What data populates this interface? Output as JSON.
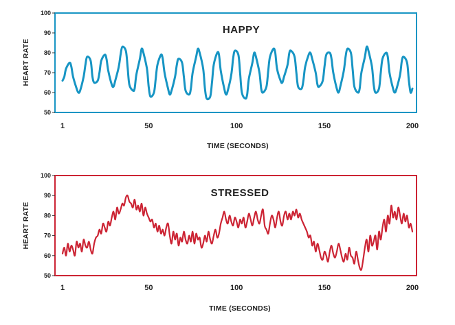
{
  "chart_data": [
    {
      "type": "line",
      "title": "HAPPY",
      "xlabel": "TIME (SECONDS)",
      "ylabel": "HEART RATE",
      "xlim": [
        1,
        200
      ],
      "ylim": [
        50,
        100
      ],
      "xticks": [
        "1",
        "50",
        "100",
        "150",
        "200"
      ],
      "yticks": [
        "50",
        "60",
        "70",
        "80",
        "90",
        "100"
      ],
      "grid": false,
      "colors": {
        "line": "#1795c4",
        "frame": "#1795c4"
      },
      "x": [
        1,
        2,
        3,
        5,
        6,
        7,
        9,
        10,
        11,
        13,
        14,
        15,
        17,
        18,
        19,
        21,
        22,
        23,
        25,
        26,
        27,
        29,
        30,
        31,
        33,
        34,
        35,
        37,
        38,
        39,
        41,
        42,
        43,
        45,
        46,
        47,
        49,
        50,
        51,
        53,
        54,
        55,
        57,
        58,
        59,
        61,
        62,
        63,
        65,
        66,
        67,
        69,
        70,
        71,
        73,
        74,
        75,
        77,
        78,
        79,
        81,
        82,
        83,
        85,
        86,
        87,
        89,
        90,
        91,
        93,
        94,
        95,
        97,
        98,
        99,
        101,
        102,
        103,
        105,
        106,
        107,
        109,
        110,
        111,
        113,
        114,
        115,
        117,
        118,
        119,
        121,
        122,
        123,
        125,
        126,
        127,
        129,
        130,
        131,
        133,
        134,
        135,
        137,
        138,
        139,
        141,
        142,
        143,
        145,
        146,
        147,
        149,
        150,
        151,
        153,
        154,
        155,
        157,
        158,
        159,
        161,
        162,
        163,
        165,
        166,
        167,
        169,
        170,
        171,
        173,
        174,
        175,
        177,
        178,
        179,
        181,
        182,
        183,
        185,
        186,
        187,
        189,
        190,
        191,
        193,
        194,
        195,
        197,
        198,
        199,
        200
      ],
      "y": [
        66,
        68,
        72,
        75,
        73,
        68,
        62,
        60,
        61,
        68,
        74,
        78,
        76,
        68,
        65,
        66,
        70,
        76,
        79,
        77,
        71,
        64,
        63,
        66,
        73,
        79,
        83,
        81,
        73,
        64,
        61,
        62,
        69,
        77,
        82,
        80,
        72,
        63,
        58,
        60,
        67,
        74,
        79,
        77,
        70,
        62,
        59,
        61,
        68,
        74,
        77,
        75,
        68,
        61,
        59,
        62,
        70,
        78,
        82,
        80,
        72,
        62,
        57,
        58,
        65,
        74,
        80,
        79,
        71,
        62,
        59,
        61,
        69,
        77,
        81,
        79,
        70,
        60,
        57,
        59,
        67,
        75,
        80,
        78,
        70,
        62,
        60,
        63,
        71,
        78,
        82,
        80,
        72,
        66,
        65,
        68,
        74,
        80,
        81,
        78,
        70,
        63,
        62,
        66,
        73,
        79,
        80,
        77,
        70,
        64,
        63,
        66,
        73,
        79,
        80,
        77,
        70,
        62,
        60,
        63,
        71,
        78,
        82,
        80,
        72,
        63,
        60,
        62,
        70,
        78,
        83,
        81,
        73,
        64,
        60,
        62,
        70,
        77,
        80,
        78,
        70,
        62,
        60,
        62,
        69,
        76,
        78,
        75,
        66,
        60,
        62
      ]
    },
    {
      "type": "line",
      "title": "STRESSED",
      "xlabel": "TIME (SECONDS)",
      "ylabel": "HEART RATE",
      "xlim": [
        1,
        200
      ],
      "ylim": [
        50,
        100
      ],
      "xticks": [
        "1",
        "50",
        "100",
        "150",
        "200"
      ],
      "yticks": [
        "50",
        "60",
        "70",
        "80",
        "90",
        "100"
      ],
      "grid": false,
      "colors": {
        "line": "#cc2434",
        "frame": "#cc2434"
      },
      "x": [
        1,
        2,
        3,
        4,
        5,
        6,
        7,
        8,
        9,
        10,
        11,
        12,
        13,
        14,
        15,
        16,
        17,
        18,
        19,
        20,
        21,
        22,
        23,
        24,
        25,
        26,
        27,
        28,
        29,
        30,
        31,
        32,
        33,
        34,
        35,
        36,
        37,
        38,
        39,
        40,
        41,
        42,
        43,
        44,
        45,
        46,
        47,
        48,
        49,
        50,
        51,
        52,
        53,
        54,
        55,
        56,
        57,
        58,
        59,
        60,
        61,
        62,
        63,
        64,
        65,
        66,
        67,
        68,
        69,
        70,
        71,
        72,
        73,
        74,
        75,
        76,
        77,
        78,
        79,
        80,
        81,
        82,
        83,
        84,
        85,
        86,
        87,
        88,
        89,
        90,
        91,
        92,
        93,
        94,
        95,
        96,
        97,
        98,
        99,
        100,
        101,
        102,
        103,
        104,
        105,
        106,
        107,
        108,
        109,
        110,
        111,
        112,
        113,
        114,
        115,
        116,
        117,
        118,
        119,
        120,
        121,
        122,
        123,
        124,
        125,
        126,
        127,
        128,
        129,
        130,
        131,
        132,
        133,
        134,
        135,
        136,
        137,
        138,
        139,
        140,
        141,
        142,
        143,
        144,
        145,
        146,
        147,
        148,
        149,
        150,
        151,
        152,
        153,
        154,
        155,
        156,
        157,
        158,
        159,
        160,
        161,
        162,
        163,
        164,
        165,
        166,
        167,
        168,
        169,
        170,
        171,
        172,
        173,
        174,
        175,
        176,
        177,
        178,
        179,
        180,
        181,
        182,
        183,
        184,
        185,
        186,
        187,
        188,
        189,
        190,
        191,
        192,
        193,
        194,
        195,
        196,
        197,
        198,
        199,
        200
      ],
      "y": [
        61,
        64,
        60,
        66,
        62,
        65,
        63,
        60,
        67,
        64,
        66,
        62,
        68,
        65,
        64,
        67,
        63,
        61,
        66,
        69,
        70,
        73,
        71,
        76,
        74,
        72,
        77,
        75,
        79,
        82,
        78,
        84,
        81,
        83,
        86,
        85,
        89,
        90,
        87,
        86,
        84,
        88,
        83,
        85,
        82,
        86,
        80,
        84,
        81,
        79,
        77,
        78,
        74,
        76,
        72,
        75,
        71,
        73,
        70,
        74,
        76,
        70,
        66,
        72,
        68,
        71,
        65,
        69,
        67,
        72,
        68,
        66,
        70,
        67,
        72,
        66,
        71,
        68,
        69,
        64,
        66,
        70,
        67,
        72,
        68,
        66,
        70,
        73,
        69,
        71,
        76,
        79,
        82,
        78,
        76,
        80,
        77,
        75,
        79,
        77,
        74,
        78,
        76,
        79,
        74,
        77,
        81,
        78,
        75,
        79,
        82,
        78,
        76,
        80,
        83,
        75,
        73,
        71,
        76,
        80,
        78,
        74,
        79,
        82,
        77,
        75,
        80,
        82,
        78,
        81,
        78,
        82,
        80,
        83,
        79,
        81,
        78,
        76,
        74,
        72,
        69,
        70,
        65,
        67,
        62,
        66,
        63,
        59,
        58,
        62,
        60,
        57,
        62,
        65,
        61,
        59,
        62,
        66,
        63,
        59,
        57,
        61,
        58,
        64,
        60,
        59,
        56,
        62,
        58,
        54,
        53,
        58,
        64,
        68,
        62,
        70,
        65,
        67,
        70,
        63,
        72,
        68,
        74,
        78,
        72,
        80,
        76,
        85,
        79,
        82,
        78,
        84,
        80,
        76,
        81,
        77,
        80,
        74,
        76,
        72
      ]
    }
  ]
}
